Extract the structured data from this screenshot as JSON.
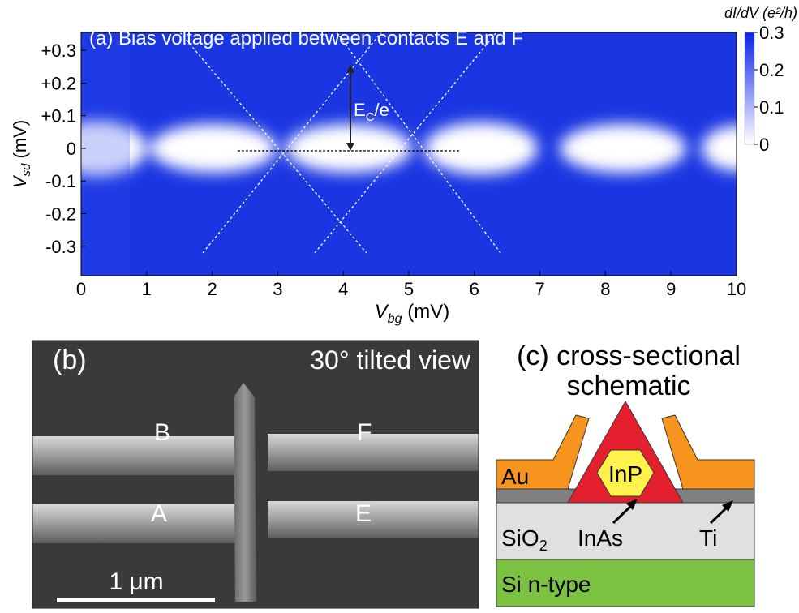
{
  "chart_data": {
    "type": "heatmap",
    "title": "(a) Bias voltage applied between contacts E and F",
    "xlabel": {
      "main": "V",
      "sub": "bg",
      "unit": "(mV)"
    },
    "ylabel": {
      "main": "V",
      "sub": "sd",
      "unit": "(mV)"
    },
    "xlim": [
      0,
      10
    ],
    "ylim": [
      -0.39,
      0.355
    ],
    "xticks": [
      0,
      1,
      2,
      3,
      4,
      5,
      6,
      7,
      8,
      9,
      10
    ],
    "yticks": [
      {
        "value": 0.3,
        "label": "+0.3"
      },
      {
        "value": 0.2,
        "label": "+0.2"
      },
      {
        "value": 0.1,
        "label": "+0.1"
      },
      0,
      -0.1,
      -0.2,
      -0.3
    ],
    "colorbar": {
      "label": "dI/dV (e²/h)",
      "lim": [
        0,
        0.3
      ],
      "ticks": [
        0,
        0.1,
        0.2,
        0.3
      ],
      "colors": [
        "#ffffff",
        "#0a22e6"
      ]
    },
    "annotation": {
      "main": "E",
      "sub": "C",
      "tail": "/e"
    }
  },
  "panel_b": {
    "label": "(b)",
    "caption": "30° tilted view",
    "contacts": [
      "B",
      "F",
      "A",
      "E"
    ],
    "scale_bar": "1 μm"
  },
  "panel_c": {
    "title": [
      "(c) cross-sectional",
      "schematic"
    ],
    "au": "Au",
    "inp": "InP",
    "sio2": {
      "main": "SiO",
      "sub": "2"
    },
    "inas": "InAs",
    "ti": "Ti",
    "si": "Si n-type"
  }
}
